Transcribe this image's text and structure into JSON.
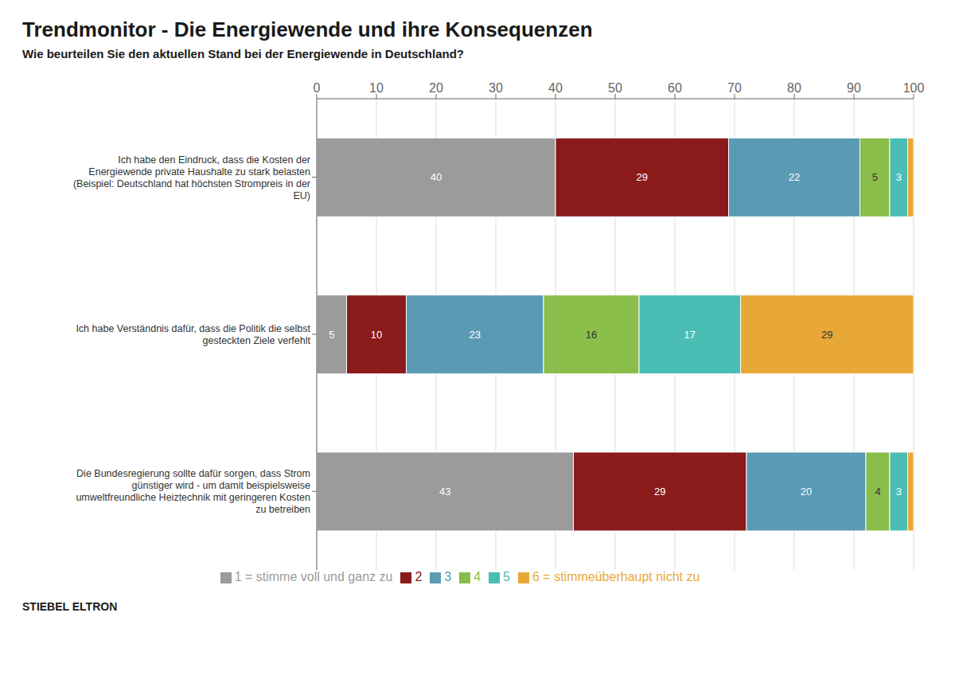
{
  "chart_data": {
    "type": "bar",
    "orientation": "horizontal",
    "stacked": true,
    "title": "Trendmonitor - Die Energiewende und ihre Konsequenzen",
    "subtitle": "Wie beurteilen Sie den aktuellen Stand bei der Energiewende in Deutschland?",
    "annotations": [
      "STIEBEL ELTRON"
    ],
    "categories": [
      "Ich habe den Eindruck, dass die Kosten der\nEnergiewende private Haushalte zu stark belasten\n(Beispiel: Deutschland hat höchsten Strompreis in der\nEU)",
      "Ich habe Verständnis dafür, dass die Politik die selbst\ngesteckten Ziele verfehlt",
      "Die Bundesregierung sollte dafür sorgen, dass Strom\ngünstiger wird - um damit beispielsweise\numweltfreundliche Heiztechnik mit geringeren Kosten\nzu betreiben"
    ],
    "series": [
      {
        "name": "1 = stimme voll und ganz zu",
        "color": "#9B9B9B",
        "values": [
          40,
          5,
          43
        ]
      },
      {
        "name": "2",
        "color": "#8B1A1A",
        "values": [
          29,
          10,
          29
        ]
      },
      {
        "name": "3",
        "color": "#5B9AB5",
        "values": [
          22,
          23,
          20
        ]
      },
      {
        "name": "4",
        "color": "#8BBD4A",
        "values": [
          5,
          16,
          4
        ]
      },
      {
        "name": "5",
        "color": "#4ABDB5",
        "values": [
          3,
          17,
          3
        ]
      },
      {
        "name": "6 = stimmeüberhaupt nicht zu",
        "color": "#E8A838",
        "values": [
          1,
          29,
          1
        ],
        "value_labels": [
          null,
          "29",
          null
        ]
      }
    ],
    "xlim": [
      0,
      100
    ],
    "xticks": [
      0,
      10,
      20,
      30,
      40,
      50,
      60,
      70,
      80,
      90,
      100
    ],
    "grid": true,
    "legend": "bottom",
    "data_labels": true
  }
}
